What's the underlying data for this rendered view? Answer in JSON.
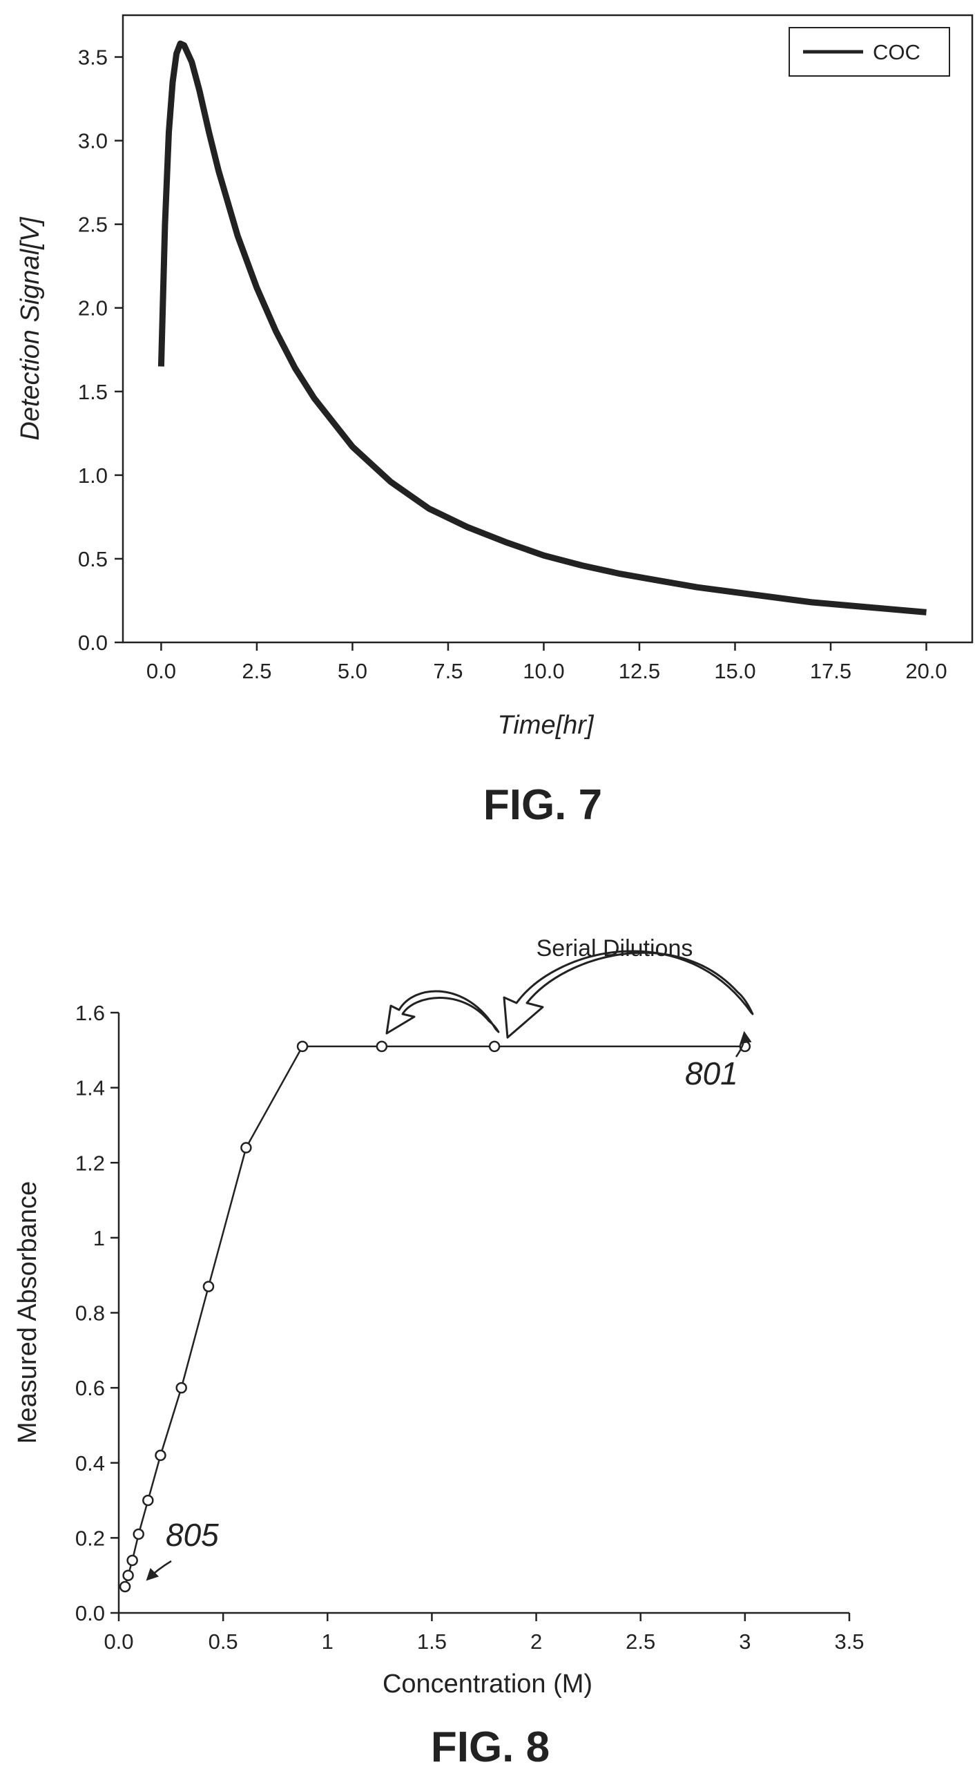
{
  "chart_data": [
    {
      "type": "line",
      "figure_label": "FIG. 7",
      "xlabel": "Time[hr]",
      "ylabel": "Detection Signal[V]",
      "xlim": [
        -1.0,
        21.2
      ],
      "ylim": [
        0.0,
        3.75
      ],
      "xticks": [
        "0.0",
        "2.5",
        "5.0",
        "7.5",
        "10.0",
        "12.5",
        "15.0",
        "17.5",
        "20.0"
      ],
      "yticks": [
        "0.0",
        "0.5",
        "1.0",
        "1.5",
        "2.0",
        "2.5",
        "3.0",
        "3.5"
      ],
      "legend": {
        "position": "top-right",
        "entries": [
          "COC"
        ]
      },
      "grid": false,
      "series": [
        {
          "name": "COC",
          "color": "#222222",
          "x": [
            0.0,
            0.1,
            0.2,
            0.3,
            0.4,
            0.5,
            0.6,
            0.8,
            1.0,
            1.25,
            1.5,
            2.0,
            2.5,
            3.0,
            3.5,
            4.0,
            5.0,
            6.0,
            7.0,
            8.0,
            9.0,
            10.0,
            11.0,
            12.0,
            13.0,
            14.0,
            15.0,
            16.0,
            17.0,
            18.0,
            19.0,
            20.0
          ],
          "y": [
            1.65,
            2.5,
            3.05,
            3.35,
            3.52,
            3.58,
            3.57,
            3.47,
            3.3,
            3.05,
            2.82,
            2.43,
            2.12,
            1.86,
            1.64,
            1.46,
            1.17,
            0.96,
            0.8,
            0.69,
            0.6,
            0.52,
            0.46,
            0.41,
            0.37,
            0.33,
            0.3,
            0.27,
            0.24,
            0.22,
            0.2,
            0.18
          ]
        }
      ]
    },
    {
      "type": "line",
      "figure_label": "FIG. 8",
      "xlabel": "Concentration (M)",
      "ylabel": "Measured Absorbance",
      "xlim": [
        0.0,
        3.5
      ],
      "ylim": [
        0.0,
        1.6
      ],
      "xticks": [
        "0.0",
        "0.5",
        "1",
        "1.5",
        "2",
        "2.5",
        "3",
        "3.5"
      ],
      "yticks": [
        "0.0",
        "0.2",
        "0.4",
        "0.6",
        "0.8",
        "1",
        "1.2",
        "1.4",
        "1.6"
      ],
      "grid": false,
      "annotations": [
        {
          "text": "Serial Dilutions"
        },
        {
          "text": "801",
          "x": 3.0,
          "y": 1.51
        },
        {
          "text": "805",
          "x": 0.03,
          "y": 0.07
        }
      ],
      "series": [
        {
          "marker": "open-circle",
          "color": "#222222",
          "x": [
            0.03,
            0.045,
            0.065,
            0.095,
            0.14,
            0.2,
            0.3,
            0.43,
            0.61,
            0.88,
            1.26,
            1.8,
            3.0
          ],
          "y": [
            0.07,
            0.1,
            0.14,
            0.21,
            0.3,
            0.42,
            0.6,
            0.87,
            1.24,
            1.51,
            1.51,
            1.51,
            1.51
          ]
        }
      ]
    }
  ]
}
